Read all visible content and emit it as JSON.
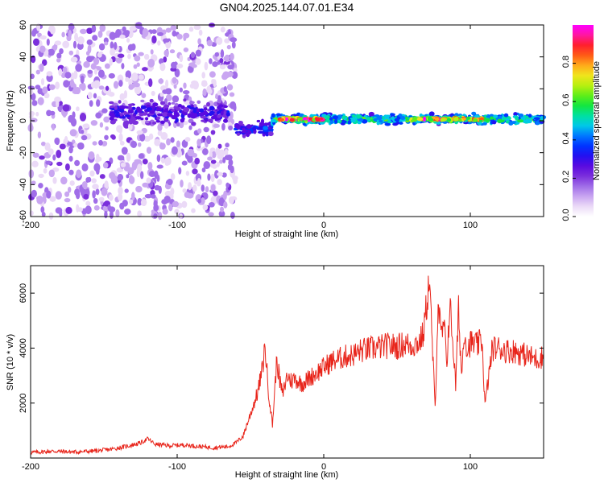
{
  "figure_title": "GN04.2025.144.07.01.E34",
  "colors": {
    "snr_line": "#e8251b",
    "colormap": [
      "#ffffff",
      "#ebdaf7",
      "#c9a6f1",
      "#a06de8",
      "#7b2fdc",
      "#5a0be0",
      "#2410f0",
      "#0033ff",
      "#0077ff",
      "#00c8e8",
      "#00e0a0",
      "#14e640",
      "#60ee18",
      "#b8ef10",
      "#f0e41c",
      "#ffaa1a",
      "#ff5a16",
      "#ff1f2e",
      "#ff17a0",
      "#ff00ff"
    ]
  },
  "chart_data": [
    {
      "type": "heatmap",
      "title": "",
      "xlabel": "Height of straight line (km)",
      "ylabel": "Frequency (Hz)",
      "xlim": [
        -200,
        150
      ],
      "ylim": [
        -60,
        60
      ],
      "x_ticks": [
        "-200",
        "-100",
        "0",
        "100"
      ],
      "x_tick_values": [
        -200,
        -100,
        0,
        100
      ],
      "y_ticks": [
        "-60",
        "-40",
        "-20",
        "0",
        "20",
        "40",
        "60"
      ],
      "y_tick_values": [
        -60,
        -40,
        -20,
        0,
        20,
        40,
        60
      ],
      "colorbar": {
        "label": "Normalized spectral amplitude",
        "range": [
          0,
          1
        ],
        "ticks": [
          "0.0",
          "0.2",
          "0.4",
          "0.6",
          "0.8"
        ],
        "tick_values": [
          0.0,
          0.2,
          0.4,
          0.6,
          0.8
        ]
      },
      "regions": [
        {
          "x_range": [
            -200,
            -60
          ],
          "freq_center": 0,
          "description": "scattered low-amplitude noise across band",
          "amplitude": 0.15
        },
        {
          "x_range": [
            -145,
            -65
          ],
          "freq_center": 5,
          "freq_half_width": 10,
          "amplitude": 0.3
        },
        {
          "x_range": [
            -60,
            -35
          ],
          "freq_center": -5,
          "freq_half_width": 6,
          "amplitude": 0.35
        },
        {
          "x_range": [
            -35,
            150
          ],
          "freq_center": 1,
          "freq_half_width": 4,
          "amplitude": 0.55
        },
        {
          "x_range": [
            -30,
            0
          ],
          "freq_center": 1,
          "freq_half_width": 1.5,
          "amplitude": 0.9
        },
        {
          "x_range": [
            60,
            110
          ],
          "freq_center": 1,
          "freq_half_width": 1.5,
          "amplitude": 0.85
        }
      ],
      "grid": false
    },
    {
      "type": "line",
      "title": "",
      "xlabel": "Height of straight line (km)",
      "ylabel": "SNR (10 * v/v)",
      "xlim": [
        -200,
        150
      ],
      "ylim": [
        0,
        7000
      ],
      "x_ticks": [
        "-200",
        "-100",
        "0",
        "100"
      ],
      "x_tick_values": [
        -200,
        -100,
        0,
        100
      ],
      "y_ticks": [
        "2000",
        "4000",
        "6000"
      ],
      "y_tick_values": [
        2000,
        4000,
        6000
      ],
      "grid": false,
      "series": [
        {
          "x": [
            -200,
            -185,
            -170,
            -155,
            -145,
            -135,
            -125,
            -120,
            -115,
            -105,
            -95,
            -85,
            -75,
            -65,
            -60,
            -55,
            -50,
            -45,
            -42,
            -40,
            -38,
            -35,
            -32,
            -30,
            -28,
            -25,
            -22,
            -20,
            -15,
            -10,
            -5,
            0,
            5,
            10,
            15,
            20,
            25,
            30,
            35,
            40,
            45,
            50,
            55,
            60,
            65,
            68,
            70,
            72,
            74,
            76,
            78,
            80,
            82,
            84,
            86,
            88,
            90,
            92,
            94,
            96,
            98,
            100,
            105,
            108,
            110,
            115,
            120,
            125,
            130,
            135,
            140,
            145,
            150
          ],
          "values": [
            200,
            250,
            220,
            260,
            320,
            420,
            550,
            700,
            500,
            450,
            480,
            420,
            380,
            420,
            550,
            800,
            1600,
            2400,
            3200,
            4100,
            2600,
            1200,
            3600,
            2800,
            2300,
            3000,
            2800,
            2900,
            2700,
            2900,
            3100,
            3300,
            3500,
            3600,
            3700,
            3750,
            3900,
            3950,
            4000,
            4050,
            4100,
            4050,
            4150,
            4100,
            4200,
            4500,
            5500,
            6500,
            4200,
            1800,
            5700,
            4400,
            4800,
            3500,
            5600,
            4300,
            2600,
            5400,
            3000,
            4700,
            3900,
            4200,
            4100,
            4300,
            1900,
            4000,
            4000,
            3900,
            3900,
            3800,
            3700,
            3600,
            3700
          ]
        }
      ]
    }
  ]
}
